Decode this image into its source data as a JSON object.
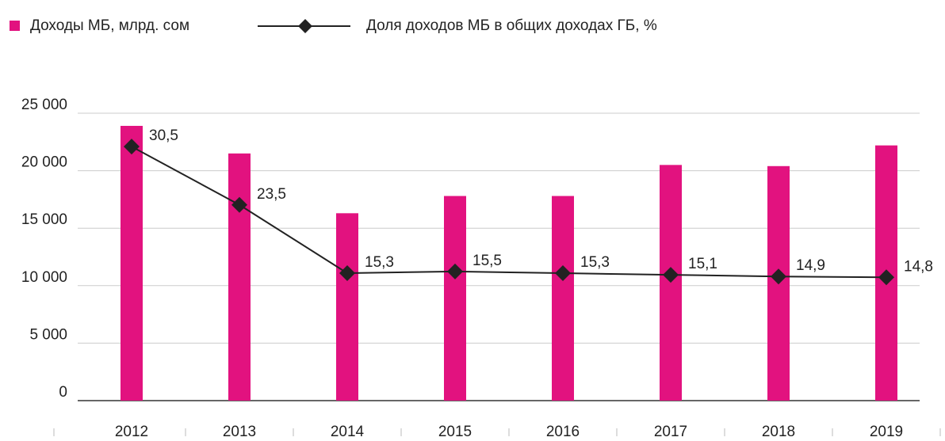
{
  "chart_data": {
    "type": "bar_line",
    "categories": [
      "2012",
      "2013",
      "2014",
      "2015",
      "2016",
      "2017",
      "2018",
      "2019"
    ],
    "series": [
      {
        "name": "Доходы МБ, млрд. сом",
        "color": "#e2127f",
        "type": "bar",
        "values": [
          23900,
          21500,
          16300,
          17800,
          17800,
          20500,
          20400,
          22200
        ]
      },
      {
        "name": "Доля доходов МБ в общих доходах ГБ, %",
        "color": "#222222",
        "type": "line",
        "axis": "y2",
        "values": [
          30.5,
          23.5,
          15.3,
          15.5,
          15.3,
          15.1,
          14.9,
          14.8
        ],
        "value_labels": [
          "30,5",
          "23,5",
          "15,3",
          "15,5",
          "15,3",
          "15,1",
          "14,9",
          "14,8"
        ]
      }
    ],
    "ylim": [
      0,
      25000
    ],
    "yticks": [
      0,
      {
        "value": 5000,
        "label": "5 000"
      },
      {
        "value": 10000,
        "label": "10 000"
      },
      {
        "value": 15000,
        "label": "15 000"
      },
      {
        "value": 20000,
        "label": "20 000"
      },
      {
        "value": 25000,
        "label": "25 000"
      }
    ],
    "y2lim": [
      0,
      34.5
    ],
    "grid": true,
    "legend": "top"
  }
}
